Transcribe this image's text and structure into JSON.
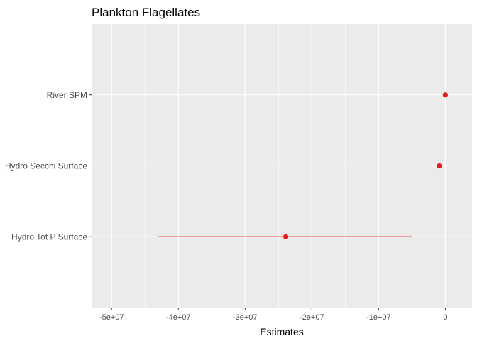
{
  "chart_data": {
    "type": "scatter",
    "title": "Plankton Flagellates",
    "xlabel": "Estimates",
    "ylabel": "",
    "xlim": [
      -53000000,
      4000000
    ],
    "x_major_ticks": [
      -50000000,
      -40000000,
      -30000000,
      -20000000,
      -10000000,
      0
    ],
    "x_tick_labels": [
      "-5e+07",
      "-4e+07",
      "-3e+07",
      "-2e+07",
      "-1e+07",
      "0"
    ],
    "x_minor_ticks": [
      -45000000,
      -35000000,
      -25000000,
      -15000000,
      -5000000
    ],
    "categories": [
      "River SPM",
      "Hydro Secchi Surface",
      "Hydro Tot P Surface"
    ],
    "estimates": [
      0,
      -900000,
      -23900000
    ],
    "ci_low": [
      0,
      -1000000,
      -43000000
    ],
    "ci_high": [
      0,
      -700000,
      -5000000
    ],
    "grid": true,
    "legend": "none",
    "colors": {
      "point": "#e31a1c",
      "panel": "#ebebeb",
      "grid": "#ffffff"
    }
  }
}
